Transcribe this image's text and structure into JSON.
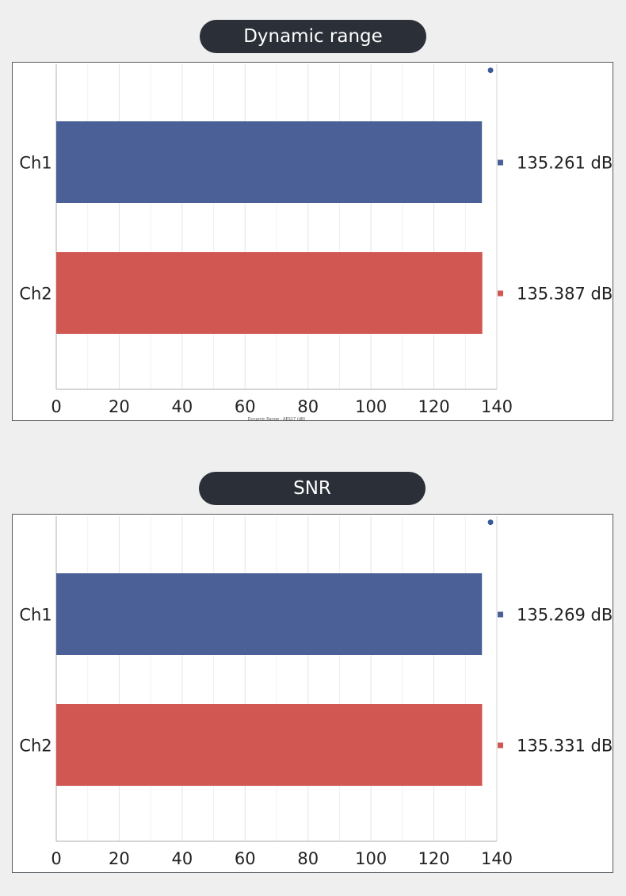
{
  "colors": {
    "ch1": "#4a6096",
    "ch2": "#d15752",
    "pill_bg": "#2a2f38",
    "page_bg": "#efefef"
  },
  "chart_data": [
    {
      "type": "bar",
      "orientation": "horizontal",
      "title": "Dynamic range",
      "xlabel": "Dynamic Range - AES17 (dB)",
      "ylabel": "",
      "categories": [
        "Ch1",
        "Ch2"
      ],
      "values": [
        135.261,
        135.387
      ],
      "value_labels": [
        "135.261 dB",
        "135.387 dB"
      ],
      "colors": [
        "#4a6096",
        "#d15752"
      ],
      "xlim": [
        0,
        140
      ],
      "xticks": [
        "0",
        "20",
        "40",
        "60",
        "80",
        "100",
        "120",
        "140"
      ],
      "grid": true,
      "legend": "right"
    },
    {
      "type": "bar",
      "orientation": "horizontal",
      "title": "SNR",
      "xlabel": "",
      "ylabel": "",
      "categories": [
        "Ch1",
        "Ch2"
      ],
      "values": [
        135.269,
        135.331
      ],
      "value_labels": [
        "135.269 dB",
        "135.331 dB"
      ],
      "colors": [
        "#4a6096",
        "#d15752"
      ],
      "xlim": [
        0,
        140
      ],
      "xticks": [
        "0",
        "20",
        "40",
        "60",
        "80",
        "100",
        "120",
        "140"
      ],
      "grid": true,
      "legend": "right"
    }
  ]
}
